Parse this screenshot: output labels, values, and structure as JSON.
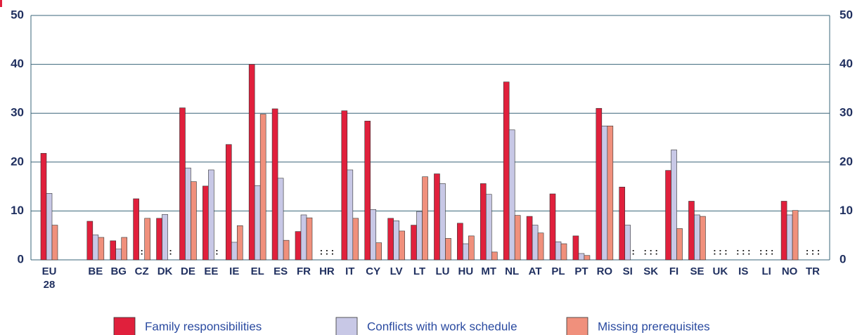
{
  "chart_data": {
    "type": "bar",
    "categories": [
      "EU 28",
      null,
      "BE",
      "BG",
      "CZ",
      "DK",
      "DE",
      "EE",
      "IE",
      "EL",
      "ES",
      "FR",
      "HR",
      "IT",
      "CY",
      "LV",
      "LT",
      "LU",
      "HU",
      "MT",
      "NL",
      "AT",
      "PL",
      "PT",
      "RO",
      "SI",
      "SK",
      "FI",
      "SE",
      "UK",
      "IS",
      "LI",
      "NO",
      "TR"
    ],
    "series": [
      {
        "name": "Family responsibilities",
        "color": "#e0203c",
        "values": [
          21.8,
          null,
          7.9,
          3.9,
          12.5,
          8.5,
          31.1,
          15.1,
          23.6,
          40.0,
          30.9,
          5.8,
          null,
          30.5,
          28.4,
          8.5,
          7.1,
          17.6,
          7.5,
          15.6,
          36.4,
          8.9,
          13.5,
          4.9,
          31.0,
          14.9,
          null,
          18.3,
          12.0,
          null,
          null,
          null,
          12.0,
          null
        ]
      },
      {
        "name": "Conflicts with work schedule",
        "color": "#c8c8e6",
        "values": [
          13.6,
          null,
          5.1,
          2.2,
          null,
          9.3,
          18.8,
          18.4,
          3.6,
          15.2,
          16.7,
          9.2,
          null,
          18.4,
          10.3,
          8.0,
          9.9,
          15.6,
          3.3,
          13.4,
          26.6,
          7.1,
          3.7,
          1.3,
          27.4,
          7.1,
          null,
          22.5,
          9.2,
          null,
          null,
          null,
          9.2,
          null
        ]
      },
      {
        "name": "Missing prerequisites",
        "color": "#f0907c",
        "values": [
          7.1,
          null,
          4.6,
          4.6,
          8.5,
          null,
          16.0,
          null,
          7.0,
          29.8,
          4.0,
          8.6,
          null,
          8.5,
          3.5,
          5.9,
          17.0,
          4.4,
          4.9,
          1.6,
          9.1,
          5.5,
          3.3,
          0.9,
          27.4,
          null,
          null,
          6.4,
          8.9,
          null,
          null,
          null,
          10.1,
          null
        ]
      }
    ],
    "missing_label": ":",
    "ylim": [
      0,
      50
    ],
    "yticks": [
      0,
      10,
      20,
      30,
      40,
      50
    ],
    "grid": true
  }
}
